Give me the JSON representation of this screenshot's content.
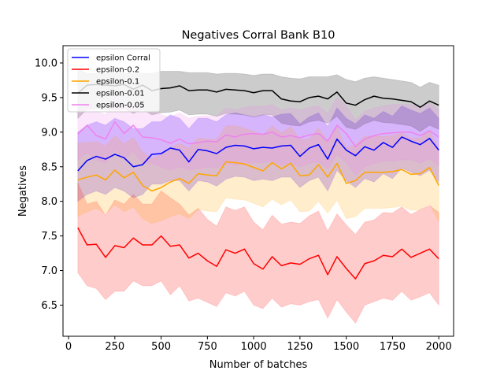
{
  "chart_data": {
    "type": "line",
    "title": "Negatives Corral Bank B10",
    "xlabel": "Number of batches",
    "ylabel": "Negatives",
    "xlim": [
      -30,
      2080
    ],
    "ylim": [
      6.05,
      10.25
    ],
    "xticks": [
      0,
      250,
      500,
      750,
      1000,
      1250,
      1500,
      1750,
      2000
    ],
    "yticks": [
      6.5,
      7.0,
      7.5,
      8.0,
      8.5,
      9.0,
      9.5,
      10.0
    ],
    "xtick_labels": [
      "0",
      "250",
      "500",
      "750",
      "1000",
      "1250",
      "1500",
      "1750",
      "2000"
    ],
    "ytick_labels": [
      "6.5",
      "7.0",
      "7.5",
      "8.0",
      "8.5",
      "9.0",
      "9.5",
      "10.0"
    ],
    "grid": false,
    "legend_position": "top-left",
    "x": [
      50,
      100,
      150,
      200,
      250,
      300,
      350,
      400,
      450,
      500,
      550,
      600,
      650,
      700,
      750,
      800,
      850,
      900,
      950,
      1000,
      1050,
      1100,
      1150,
      1200,
      1250,
      1300,
      1350,
      1400,
      1450,
      1500,
      1550,
      1600,
      1650,
      1700,
      1750,
      1800,
      1850,
      1900,
      1950,
      2000
    ],
    "series": [
      {
        "name": "epsilon Corral",
        "color": "#0000ff",
        "band_color": "#8c66ff",
        "band_opacity": 0.4,
        "values": [
          8.44,
          8.59,
          8.65,
          8.61,
          8.68,
          8.63,
          8.5,
          8.53,
          8.68,
          8.69,
          8.77,
          8.74,
          8.57,
          8.75,
          8.73,
          8.69,
          8.78,
          8.81,
          8.8,
          8.76,
          8.78,
          8.77,
          8.8,
          8.81,
          8.65,
          8.77,
          8.82,
          8.61,
          8.9,
          8.74,
          8.66,
          8.79,
          8.74,
          8.85,
          8.78,
          8.93,
          8.87,
          8.82,
          8.91,
          8.74
        ],
        "lower": [
          8.0,
          8.1,
          8.15,
          8.1,
          8.2,
          8.15,
          8.05,
          8.1,
          8.25,
          8.25,
          8.3,
          8.3,
          8.15,
          8.3,
          8.28,
          8.22,
          8.32,
          8.36,
          8.35,
          8.3,
          8.32,
          8.3,
          8.35,
          8.35,
          8.2,
          8.3,
          8.35,
          8.15,
          8.45,
          8.3,
          8.2,
          8.33,
          8.28,
          8.4,
          8.33,
          8.48,
          8.42,
          8.37,
          8.45,
          8.28
        ],
        "upper": [
          9.0,
          9.1,
          9.15,
          9.1,
          9.2,
          9.15,
          9.05,
          9.05,
          9.15,
          9.15,
          9.25,
          9.2,
          9.05,
          9.2,
          9.2,
          9.15,
          9.25,
          9.28,
          9.25,
          9.22,
          9.25,
          9.22,
          9.26,
          9.27,
          9.12,
          9.22,
          9.28,
          9.08,
          9.35,
          9.2,
          9.12,
          9.25,
          9.2,
          9.3,
          9.23,
          9.38,
          9.32,
          9.27,
          9.35,
          9.2
        ]
      },
      {
        "name": "epsilon-0.2",
        "color": "#ff0000",
        "band_color": "#ff0000",
        "band_opacity": 0.2,
        "values": [
          7.62,
          7.37,
          7.38,
          7.19,
          7.36,
          7.33,
          7.47,
          7.37,
          7.37,
          7.5,
          7.35,
          7.37,
          7.18,
          7.25,
          7.14,
          7.06,
          7.3,
          7.25,
          7.31,
          7.1,
          7.02,
          7.2,
          7.07,
          7.11,
          7.09,
          7.17,
          7.22,
          6.94,
          7.2,
          7.03,
          6.88,
          7.1,
          7.14,
          7.22,
          7.2,
          7.31,
          7.19,
          7.25,
          7.31,
          7.17
        ],
        "lower": [
          6.97,
          6.78,
          6.74,
          6.58,
          6.7,
          6.7,
          6.85,
          6.78,
          6.78,
          6.85,
          6.65,
          6.78,
          6.56,
          6.6,
          6.54,
          6.48,
          6.68,
          6.63,
          6.7,
          6.5,
          6.45,
          6.6,
          6.47,
          6.52,
          6.5,
          6.55,
          6.58,
          6.31,
          6.58,
          6.4,
          6.24,
          6.5,
          6.55,
          6.6,
          6.57,
          6.7,
          6.57,
          6.62,
          6.68,
          6.5
        ],
        "upper": [
          8.27,
          7.96,
          8.0,
          7.8,
          8.02,
          7.96,
          8.1,
          7.96,
          7.96,
          8.15,
          8.05,
          7.96,
          7.8,
          7.9,
          7.74,
          7.64,
          7.92,
          7.87,
          7.92,
          7.7,
          7.59,
          7.8,
          7.67,
          7.7,
          7.68,
          7.79,
          7.86,
          7.57,
          7.82,
          7.66,
          7.52,
          7.7,
          7.73,
          7.84,
          7.83,
          7.92,
          7.81,
          7.88,
          7.94,
          7.84
        ]
      },
      {
        "name": "epsilon-0.1",
        "color": "#ffa500",
        "band_color": "#ffa500",
        "band_opacity": 0.2,
        "values": [
          8.31,
          8.35,
          8.38,
          8.31,
          8.45,
          8.34,
          8.42,
          8.23,
          8.15,
          8.2,
          8.28,
          8.33,
          8.26,
          8.4,
          8.38,
          8.37,
          8.57,
          8.56,
          8.54,
          8.49,
          8.44,
          8.56,
          8.47,
          8.55,
          8.37,
          8.38,
          8.53,
          8.35,
          8.55,
          8.26,
          8.3,
          8.42,
          8.42,
          8.42,
          8.43,
          8.46,
          8.39,
          8.4,
          8.49,
          8.23
        ],
        "lower": [
          7.78,
          7.85,
          7.9,
          7.82,
          7.95,
          7.85,
          7.92,
          7.75,
          7.68,
          7.72,
          7.78,
          7.82,
          7.75,
          7.88,
          7.86,
          7.85,
          8.05,
          8.03,
          8.02,
          7.97,
          7.92,
          8.03,
          7.95,
          8.02,
          7.85,
          7.86,
          8.0,
          7.83,
          8.02,
          7.75,
          7.78,
          7.9,
          7.9,
          7.9,
          7.91,
          7.93,
          7.87,
          7.88,
          7.96,
          7.71
        ],
        "upper": [
          8.84,
          8.85,
          8.86,
          8.8,
          8.95,
          8.83,
          8.92,
          8.71,
          8.62,
          8.68,
          8.78,
          8.84,
          8.77,
          8.92,
          8.9,
          8.89,
          9.09,
          9.09,
          9.06,
          9.01,
          8.96,
          9.09,
          8.99,
          9.08,
          8.89,
          8.9,
          9.06,
          8.87,
          9.08,
          8.77,
          8.82,
          8.94,
          8.94,
          8.94,
          8.95,
          8.99,
          8.91,
          8.92,
          9.02,
          8.75
        ]
      },
      {
        "name": "epsilon-0.01",
        "color": "#000000",
        "band_color": "#000000",
        "band_opacity": 0.2,
        "values": [
          9.56,
          9.68,
          9.69,
          9.68,
          9.67,
          9.69,
          9.62,
          9.68,
          9.6,
          9.63,
          9.64,
          9.67,
          9.6,
          9.61,
          9.61,
          9.58,
          9.62,
          9.61,
          9.6,
          9.57,
          9.6,
          9.6,
          9.48,
          9.45,
          9.44,
          9.5,
          9.52,
          9.48,
          9.58,
          9.42,
          9.39,
          9.47,
          9.52,
          9.49,
          9.48,
          9.46,
          9.44,
          9.36,
          9.45,
          9.39
        ],
        "lower": [
          9.2,
          9.33,
          9.34,
          9.33,
          9.32,
          9.34,
          9.27,
          9.33,
          9.25,
          9.28,
          9.29,
          9.32,
          9.25,
          9.26,
          9.26,
          9.23,
          9.27,
          9.26,
          9.25,
          9.22,
          9.25,
          9.25,
          9.13,
          9.1,
          9.09,
          9.15,
          9.17,
          9.13,
          9.23,
          9.07,
          9.04,
          9.12,
          9.17,
          9.14,
          9.13,
          9.11,
          9.09,
          9.01,
          9.1,
          9.04
        ],
        "upper": [
          9.92,
          9.85,
          9.85,
          9.85,
          9.85,
          9.85,
          9.85,
          9.85,
          9.85,
          9.88,
          9.88,
          9.88,
          9.86,
          9.86,
          9.86,
          9.84,
          9.85,
          9.85,
          9.84,
          9.82,
          9.84,
          9.84,
          9.8,
          9.78,
          9.77,
          9.8,
          9.8,
          9.8,
          9.83,
          9.76,
          9.73,
          9.78,
          9.8,
          9.78,
          9.76,
          9.74,
          9.72,
          9.65,
          9.72,
          9.68
        ]
      },
      {
        "name": "epsilon-0.05",
        "color": "#ee82ee",
        "band_color": "#ee82ee",
        "band_opacity": 0.2,
        "values": [
          8.97,
          9.1,
          8.95,
          8.9,
          9.15,
          8.98,
          9.1,
          8.93,
          8.92,
          8.89,
          8.84,
          8.9,
          8.83,
          8.85,
          8.87,
          8.86,
          8.96,
          8.93,
          8.97,
          8.98,
          8.97,
          9.0,
          8.93,
          8.95,
          8.92,
          8.96,
          8.98,
          8.87,
          9.1,
          8.98,
          8.79,
          8.9,
          8.95,
          8.98,
          8.99,
          9.0,
          9.0,
          8.95,
          9.02,
          8.93
        ],
        "lower": [
          8.6,
          8.7,
          8.6,
          8.55,
          8.75,
          8.6,
          8.72,
          8.55,
          8.55,
          8.5,
          8.45,
          8.5,
          8.45,
          8.47,
          8.5,
          8.48,
          8.55,
          8.52,
          8.55,
          8.56,
          8.56,
          8.58,
          8.52,
          8.55,
          8.5,
          8.55,
          8.57,
          8.47,
          8.68,
          8.56,
          8.38,
          8.5,
          8.55,
          8.58,
          8.58,
          8.6,
          8.6,
          8.55,
          8.62,
          8.52
        ],
        "upper": [
          9.3,
          9.45,
          9.3,
          9.25,
          9.5,
          9.35,
          9.45,
          9.3,
          9.3,
          9.25,
          9.22,
          9.28,
          9.2,
          9.23,
          9.24,
          9.23,
          9.35,
          9.32,
          9.36,
          9.38,
          9.37,
          9.4,
          9.32,
          9.35,
          9.32,
          9.36,
          9.38,
          9.27,
          9.5,
          9.38,
          9.18,
          9.3,
          9.35,
          9.38,
          9.4,
          9.4,
          9.4,
          9.35,
          9.42,
          9.33
        ]
      }
    ]
  }
}
